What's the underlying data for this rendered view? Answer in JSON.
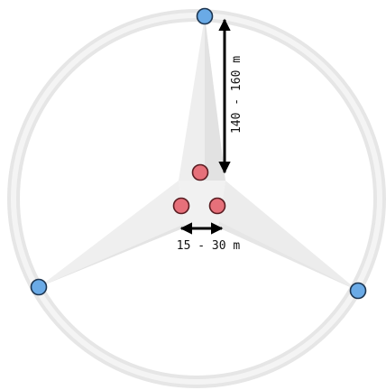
{
  "diagram": {
    "dimension_vertical": "140 - 160 m",
    "dimension_horizontal": "15 - 30 m",
    "outer_nodes": {
      "count": 3,
      "color": "#6aaae6",
      "stroke": "#1d3550"
    },
    "inner_nodes": {
      "count": 3,
      "color": "#e6707a",
      "stroke": "#5a1d22"
    },
    "ring_color": "#ececec",
    "star_color": "#f3f3f3",
    "arrow_color": "#000000"
  }
}
